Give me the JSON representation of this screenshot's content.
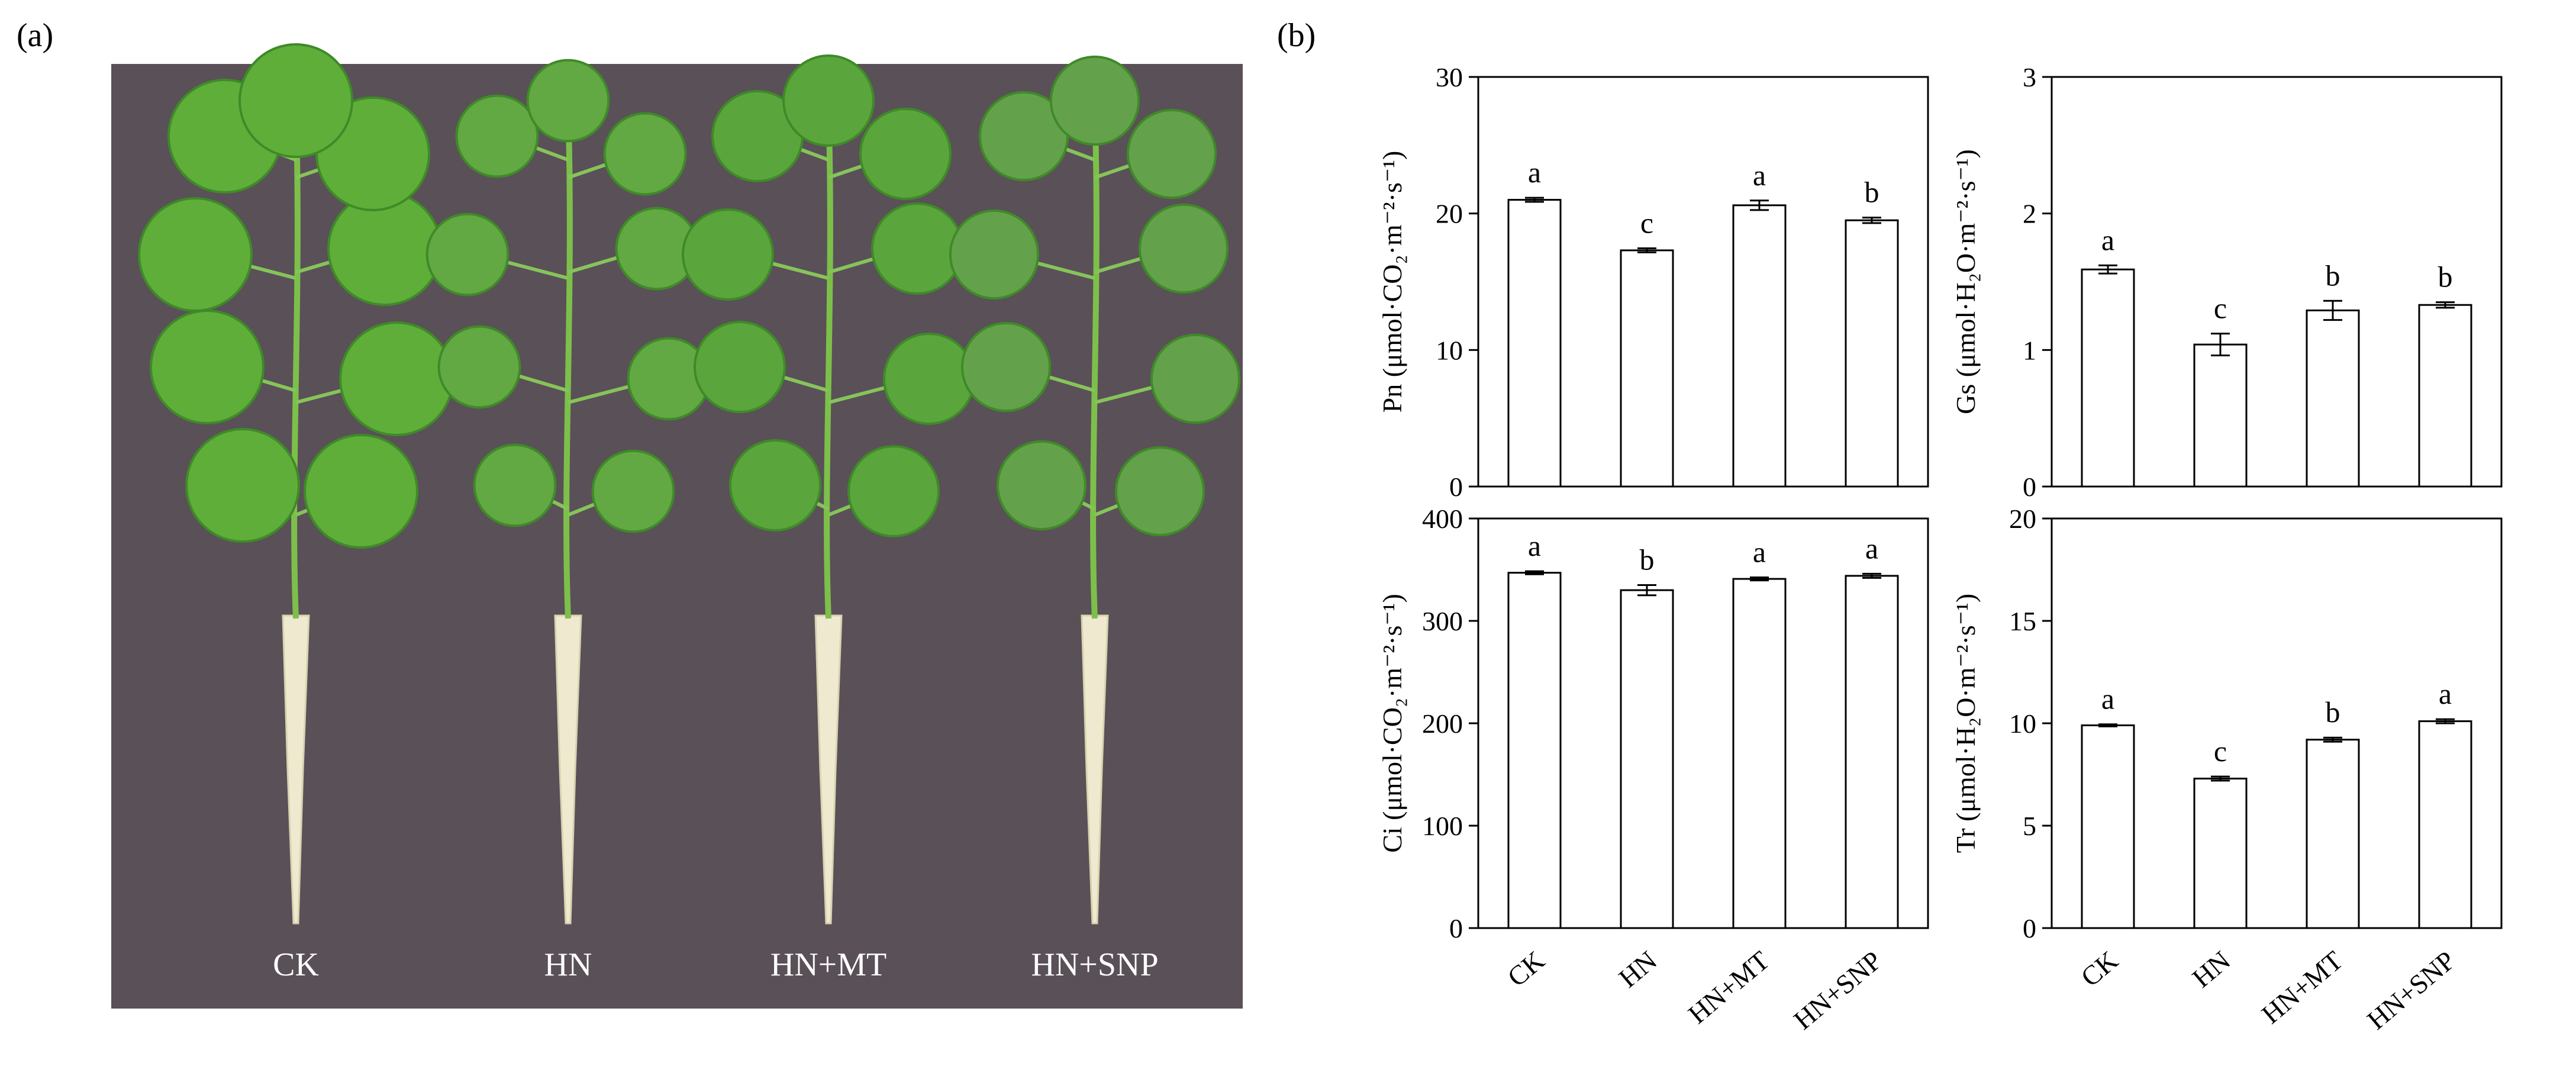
{
  "panel_a": {
    "label": "(a)",
    "background_color": "#5a5058",
    "plant_labels": [
      "CK",
      "HN",
      "HN+MT",
      "HN+SNP"
    ]
  },
  "panel_b": {
    "label": "(b)"
  },
  "chart_data": [
    {
      "type": "bar",
      "ylabel": "Pn (μmol·CO₂·m⁻²·s⁻¹)",
      "categories": [
        "CK",
        "HN",
        "HN+MT",
        "HN+SNP"
      ],
      "values": [
        21.0,
        17.3,
        20.6,
        19.5
      ],
      "errors": [
        0.15,
        0.15,
        0.35,
        0.2
      ],
      "significance": [
        "a",
        "c",
        "a",
        "b"
      ],
      "ylim": [
        0,
        30
      ],
      "yticks": [
        0,
        10,
        20,
        30
      ]
    },
    {
      "type": "bar",
      "ylabel": "Gs (μmol·H₂O·m⁻²·s⁻¹)",
      "categories": [
        "CK",
        "HN",
        "HN+MT",
        "HN+SNP"
      ],
      "values": [
        1.59,
        1.04,
        1.29,
        1.33
      ],
      "errors": [
        0.03,
        0.08,
        0.07,
        0.02
      ],
      "significance": [
        "a",
        "c",
        "b",
        "b"
      ],
      "ylim": [
        0,
        3
      ],
      "yticks": [
        0,
        1,
        2,
        3
      ]
    },
    {
      "type": "bar",
      "ylabel": "Ci (μmol·CO₂·m⁻²·s⁻¹)",
      "categories": [
        "CK",
        "HN",
        "HN+MT",
        "HN+SNP"
      ],
      "values": [
        347,
        330,
        341,
        344
      ],
      "errors": [
        1.5,
        5,
        1.5,
        2
      ],
      "significance": [
        "a",
        "b",
        "a",
        "a"
      ],
      "ylim": [
        0,
        400
      ],
      "yticks": [
        0,
        100,
        200,
        300,
        400
      ]
    },
    {
      "type": "bar",
      "ylabel": "Tr (μmol·H₂O·m⁻²·s⁻¹)",
      "categories": [
        "CK",
        "HN",
        "HN+MT",
        "HN+SNP"
      ],
      "values": [
        9.9,
        7.3,
        9.2,
        10.1
      ],
      "errors": [
        0.05,
        0.1,
        0.1,
        0.1
      ],
      "significance": [
        "a",
        "c",
        "b",
        "a"
      ],
      "ylim": [
        0,
        20
      ],
      "yticks": [
        0,
        5,
        10,
        15,
        20
      ]
    }
  ]
}
